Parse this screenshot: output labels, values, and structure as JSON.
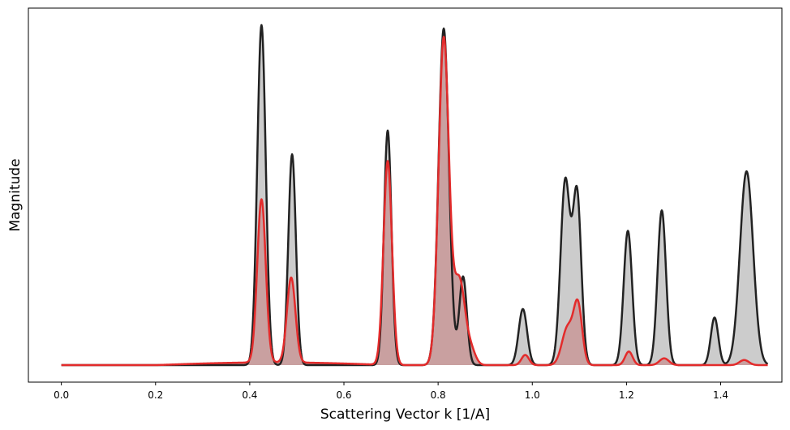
{
  "chart_data": {
    "type": "area",
    "title": "",
    "xlabel": "Scattering Vector k [1/A]",
    "ylabel": "Magnitude",
    "xlim": [
      -0.07,
      1.53
    ],
    "ylim": [
      -0.05,
      1.05
    ],
    "xticks": [
      0.0,
      0.2,
      0.4,
      0.6,
      0.8,
      1.0,
      1.2,
      1.4
    ],
    "xtick_labels": [
      "0.0",
      "0.2",
      "0.4",
      "0.6",
      "0.8",
      "1.0",
      "1.2",
      "1.4"
    ],
    "yticks_shown": false,
    "grid": false,
    "legend": "none",
    "x_range": [
      0.0,
      1.5
    ],
    "series": [
      {
        "color": "#222222",
        "fill": "#cccccc",
        "peaks": [
          {
            "center": 0.425,
            "height": 1.0,
            "width": 0.009
          },
          {
            "center": 0.49,
            "height": 0.62,
            "width": 0.008
          },
          {
            "center": 0.693,
            "height": 0.69,
            "width": 0.008
          },
          {
            "center": 0.812,
            "height": 0.99,
            "width": 0.011
          },
          {
            "center": 0.853,
            "height": 0.26,
            "width": 0.008
          },
          {
            "center": 0.98,
            "height": 0.165,
            "width": 0.009
          },
          {
            "center": 1.07,
            "height": 0.54,
            "width": 0.01
          },
          {
            "center": 1.095,
            "height": 0.5,
            "width": 0.009
          },
          {
            "center": 1.203,
            "height": 0.395,
            "width": 0.009
          },
          {
            "center": 1.275,
            "height": 0.455,
            "width": 0.009
          },
          {
            "center": 1.387,
            "height": 0.14,
            "width": 0.008
          },
          {
            "center": 1.455,
            "height": 0.57,
            "width": 0.014
          }
        ]
      },
      {
        "color": "#e32b2b",
        "fill": "#c9a0a0",
        "peaks": [
          {
            "center": 0.425,
            "height": 0.48,
            "width": 0.009
          },
          {
            "center": 0.488,
            "height": 0.25,
            "width": 0.009
          },
          {
            "center": 0.693,
            "height": 0.6,
            "width": 0.009
          },
          {
            "center": 0.812,
            "height": 0.96,
            "width": 0.011
          },
          {
            "center": 0.845,
            "height": 0.25,
            "width": 0.012
          },
          {
            "center": 0.87,
            "height": 0.04,
            "width": 0.01
          },
          {
            "center": 0.985,
            "height": 0.03,
            "width": 0.008
          },
          {
            "center": 1.075,
            "height": 0.11,
            "width": 0.012
          },
          {
            "center": 1.097,
            "height": 0.17,
            "width": 0.009
          },
          {
            "center": 1.205,
            "height": 0.04,
            "width": 0.008
          },
          {
            "center": 1.28,
            "height": 0.02,
            "width": 0.01
          },
          {
            "center": 1.45,
            "height": 0.015,
            "width": 0.01
          }
        ],
        "baseline": {
          "start": 0.2,
          "end": 0.7,
          "level": 0.008
        }
      }
    ]
  }
}
